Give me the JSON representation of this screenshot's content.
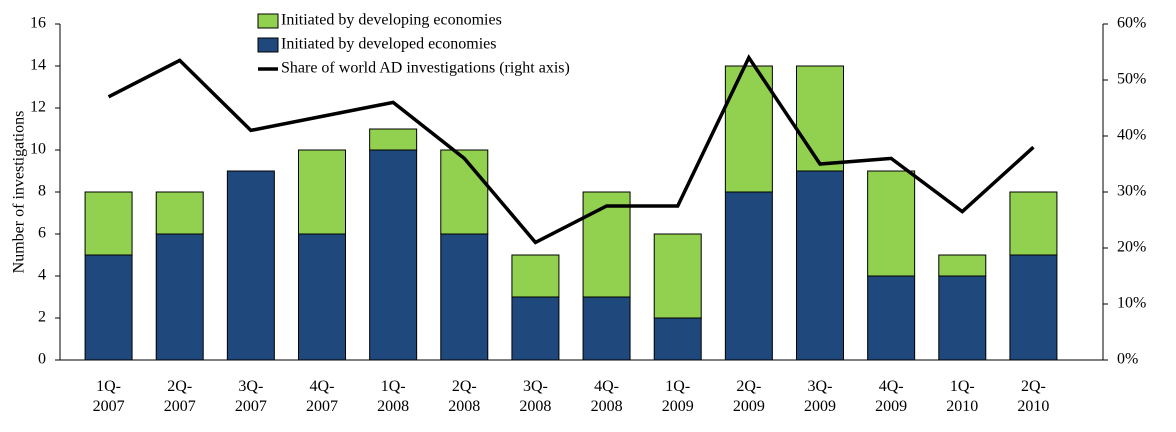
{
  "chart_data": {
    "type": "bar",
    "stacked": true,
    "ylabel": "Number of investigations",
    "categories": [
      "1Q- 2007",
      "2Q- 2007",
      "3Q- 2007",
      "4Q- 2007",
      "1Q- 2008",
      "2Q- 2008",
      "3Q- 2008",
      "4Q- 2008",
      "1Q- 2009",
      "2Q- 2009",
      "3Q- 2009",
      "4Q- 2009",
      "1Q- 2010",
      "2Q- 2010"
    ],
    "series": [
      {
        "name": "Initiated by developed economies",
        "type": "bar",
        "color": "#1f497d",
        "values": [
          5,
          6,
          9,
          6,
          10,
          6,
          3,
          3,
          2,
          8,
          9,
          4,
          4,
          5
        ]
      },
      {
        "name": "Initiated by developing economies",
        "type": "bar",
        "color": "#92d050",
        "values": [
          3,
          2,
          0,
          4,
          1,
          4,
          2,
          5,
          4,
          6,
          5,
          5,
          1,
          3
        ]
      },
      {
        "name": "Share of world AD investigations (right axis)",
        "type": "line",
        "axis": "y2",
        "color": "#000000",
        "values": [
          47,
          53.5,
          41,
          43.5,
          46,
          36,
          21,
          27.5,
          27.5,
          54,
          35,
          36,
          26.5,
          38
        ]
      }
    ],
    "ylim": [
      0,
      16
    ],
    "yticks": [
      0,
      2,
      4,
      6,
      8,
      10,
      12,
      14,
      16
    ],
    "y2lim": [
      0,
      60
    ],
    "y2ticks": [
      {
        "value": 0,
        "label": "0%"
      },
      {
        "value": 10,
        "label": "10%"
      },
      {
        "value": 20,
        "label": "20%"
      },
      {
        "value": 30,
        "label": "30%"
      },
      {
        "value": 40,
        "label": "40%"
      },
      {
        "value": 50,
        "label": "50%"
      },
      {
        "value": 60,
        "label": "60%"
      }
    ]
  }
}
